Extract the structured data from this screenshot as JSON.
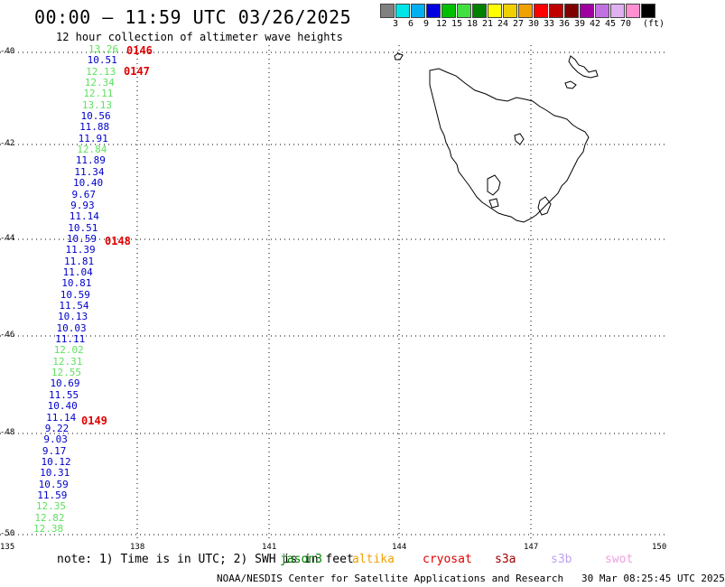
{
  "header": {
    "title": "00:00 – 11:59 UTC 03/26/2025",
    "subtitle": "12 hour collection of altimeter wave heights"
  },
  "color_scale": {
    "unit": "(ft)",
    "bins": [
      {
        "label": "",
        "color": "#808080"
      },
      {
        "label": "3",
        "color": "#00e5e5"
      },
      {
        "label": "6",
        "color": "#00b0f0"
      },
      {
        "label": "9",
        "color": "#0000e0"
      },
      {
        "label": "12",
        "color": "#00c000"
      },
      {
        "label": "15",
        "color": "#40e040"
      },
      {
        "label": "18",
        "color": "#008000"
      },
      {
        "label": "21",
        "color": "#ffff00"
      },
      {
        "label": "24",
        "color": "#f0d000"
      },
      {
        "label": "27",
        "color": "#f0a000"
      },
      {
        "label": "30",
        "color": "#ff0000"
      },
      {
        "label": "33",
        "color": "#c00000"
      },
      {
        "label": "36",
        "color": "#800000"
      },
      {
        "label": "39",
        "color": "#a000a0"
      },
      {
        "label": "42",
        "color": "#c070e0"
      },
      {
        "label": "45",
        "color": "#e0b0f0"
      },
      {
        "label": "70",
        "color": "#ff90d0"
      },
      {
        "label": "",
        "color": "#000000"
      }
    ]
  },
  "map": {
    "lon_ticks": [
      "135",
      "138",
      "141",
      "144",
      "147",
      "150"
    ],
    "lat_ticks": [
      "-40",
      "-42",
      "-44",
      "-46",
      "-48",
      "-50"
    ],
    "coastline": "Tasmania",
    "swh_readings": [
      {
        "value": "13.26",
        "color": "#60e060"
      },
      {
        "value": "10.51",
        "color": "#0000cc"
      },
      {
        "value": "12.13",
        "color": "#60e060"
      },
      {
        "value": "12.34",
        "color": "#60e060"
      },
      {
        "value": "12.11",
        "color": "#60e060"
      },
      {
        "value": "13.13",
        "color": "#60e060"
      },
      {
        "value": "10.56",
        "color": "#0000cc"
      },
      {
        "value": "11.88",
        "color": "#0000cc"
      },
      {
        "value": "11.91",
        "color": "#0000cc"
      },
      {
        "value": "12.84",
        "color": "#60e060"
      },
      {
        "value": "11.89",
        "color": "#0000cc"
      },
      {
        "value": "11.34",
        "color": "#0000cc"
      },
      {
        "value": "10.40",
        "color": "#0000cc"
      },
      {
        "value": "9.67",
        "color": "#0000cc"
      },
      {
        "value": "9.93",
        "color": "#0000cc"
      },
      {
        "value": "11.14",
        "color": "#0000cc"
      },
      {
        "value": "10.51",
        "color": "#0000cc"
      },
      {
        "value": "10.59",
        "color": "#0000cc"
      },
      {
        "value": "11.39",
        "color": "#0000cc"
      },
      {
        "value": "11.81",
        "color": "#0000cc"
      },
      {
        "value": "11.04",
        "color": "#0000cc"
      },
      {
        "value": "10.81",
        "color": "#0000cc"
      },
      {
        "value": "10.59",
        "color": "#0000cc"
      },
      {
        "value": "11.54",
        "color": "#0000cc"
      },
      {
        "value": "10.13",
        "color": "#0000cc"
      },
      {
        "value": "10.03",
        "color": "#0000cc"
      },
      {
        "value": "11.11",
        "color": "#0000cc"
      },
      {
        "value": "12.02",
        "color": "#60e060"
      },
      {
        "value": "12.31",
        "color": "#60e060"
      },
      {
        "value": "12.55",
        "color": "#60e060"
      },
      {
        "value": "10.69",
        "color": "#0000cc"
      },
      {
        "value": "11.55",
        "color": "#0000cc"
      },
      {
        "value": "10.40",
        "color": "#0000cc"
      },
      {
        "value": "11.14",
        "color": "#0000cc"
      },
      {
        "value": "9.22",
        "color": "#0000cc"
      },
      {
        "value": "9.03",
        "color": "#0000cc"
      },
      {
        "value": "9.17",
        "color": "#0000cc"
      },
      {
        "value": "10.12",
        "color": "#0000cc"
      },
      {
        "value": "10.31",
        "color": "#0000cc"
      },
      {
        "value": "10.59",
        "color": "#0000cc"
      },
      {
        "value": "11.59",
        "color": "#0000cc"
      },
      {
        "value": "12.35",
        "color": "#60e060"
      },
      {
        "value": "12.82",
        "color": "#60e060"
      },
      {
        "value": "12.38",
        "color": "#60e060"
      }
    ],
    "pass_labels": [
      "0146",
      "0147",
      "0148",
      "0149"
    ]
  },
  "footer": {
    "note": "note: 1) Time is in UTC; 2) SWH is in feet",
    "satellites": [
      {
        "name": "jason3",
        "color": "#008000"
      },
      {
        "name": "altika",
        "color": "#f0a000"
      },
      {
        "name": "cryosat",
        "color": "#e00000"
      },
      {
        "name": "s3a",
        "color": "#a00000"
      },
      {
        "name": "s3b",
        "color": "#c0a0f0"
      },
      {
        "name": "swot",
        "color": "#f0a0e0"
      }
    ],
    "credit": "NOAA/NESDIS Center for Satellite Applications and Research",
    "timestamp": "30 Mar 08:25:45 UTC 2025"
  }
}
